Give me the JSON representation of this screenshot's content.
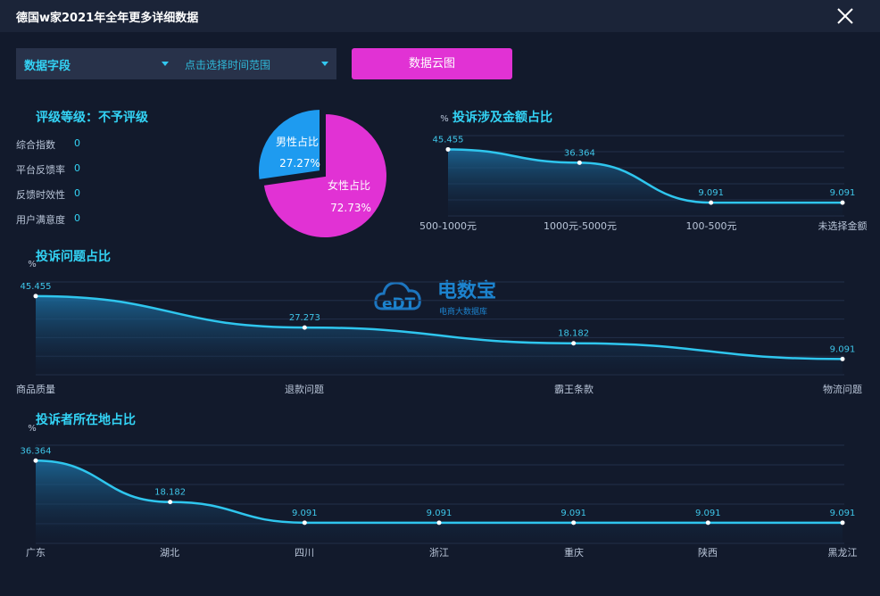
{
  "window": {
    "title": "德国w家2021年全年更多详细数据"
  },
  "toolbar": {
    "field_select": "数据字段",
    "time_select": "点击选择时间范围",
    "cloud_button": "数据云图"
  },
  "rating": {
    "title": "评级等级：不予评级",
    "items": [
      {
        "label": "综合指数",
        "value": "0"
      },
      {
        "label": "平台反馈率",
        "value": "0"
      },
      {
        "label": "反馈时效性",
        "value": "0"
      },
      {
        "label": "用户满意度",
        "value": "0"
      }
    ]
  },
  "watermark": {
    "brand": "电数宝",
    "sub": "电商大数据库",
    "logo": "eDT"
  },
  "colors": {
    "accent": "#33d3f5",
    "male": "#1e9bf0",
    "female": "#e132d4",
    "button": "#e132d4"
  },
  "chart_data": [
    {
      "type": "pie",
      "labels": [
        "男性占比",
        "女性占比"
      ],
      "values": [
        27.27,
        72.73
      ],
      "display": [
        "27.27%",
        "72.73%"
      ]
    },
    {
      "type": "area",
      "title": "投诉涉及金额占比",
      "ylabel": "%",
      "categories": [
        "500-1000元",
        "1000元-5000元",
        "100-500元",
        "未选择金额"
      ],
      "values": [
        45.455,
        36.364,
        9.091,
        9.091
      ],
      "labels": [
        "45.455",
        "36.364",
        "9.091",
        "9.091"
      ],
      "ylim": [
        0,
        50
      ],
      "grid": true
    },
    {
      "type": "area",
      "title": "投诉问题占比",
      "ylabel": "%",
      "categories": [
        "商品质量",
        "退款问题",
        "霸王条款",
        "物流问题"
      ],
      "values": [
        45.455,
        27.273,
        18.182,
        9.091
      ],
      "labels": [
        "45.455",
        "27.273",
        "18.182",
        "9.091"
      ],
      "ylim": [
        0,
        50
      ],
      "grid": true
    },
    {
      "type": "area",
      "title": "投诉者所在地占比",
      "ylabel": "%",
      "categories": [
        "广东",
        "湖北",
        "四川",
        "浙江",
        "重庆",
        "陕西",
        "黑龙江"
      ],
      "values": [
        36.364,
        18.182,
        9.091,
        9.091,
        9.091,
        9.091,
        9.091
      ],
      "labels": [
        "36.364",
        "18.182",
        "9.091",
        "9.091",
        "9.091",
        "9.091",
        "9.091"
      ],
      "ylim": [
        0,
        40
      ],
      "grid": true
    }
  ]
}
